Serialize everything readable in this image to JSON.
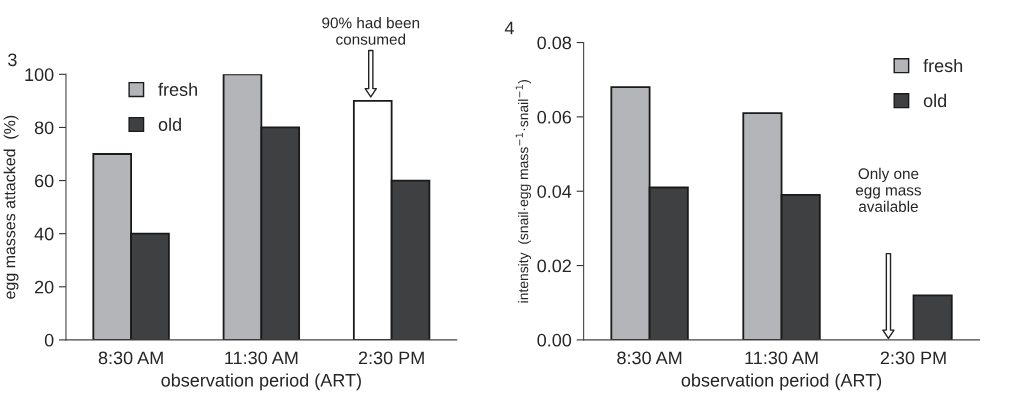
{
  "chart_data": [
    {
      "type": "bar",
      "title": "3",
      "categories": [
        "8:30 AM",
        "11:30 AM",
        "2:30 PM"
      ],
      "xlabel": "observation period (ART)",
      "ylabel": "egg masses attacked  (%)",
      "ylim": [
        0,
        100
      ],
      "yticks": [
        0,
        20,
        40,
        60,
        80,
        100
      ],
      "legend": "top left",
      "grid": false,
      "series": [
        {
          "name": "fresh",
          "color": "#b4b5b8",
          "colors": [
            "#b4b5b8",
            "#b4b5b8",
            "#ffffff"
          ],
          "values": [
            70,
            100,
            90
          ]
        },
        {
          "name": "old",
          "color": "#3f4042",
          "values": [
            40,
            80,
            60
          ]
        }
      ],
      "annotations": [
        "90% had been\nconsumed"
      ]
    },
    {
      "type": "bar",
      "title": "4",
      "categories": [
        "8:30 AM",
        "11:30 AM",
        "2:30 PM"
      ],
      "xlabel": "observation period (ART)",
      "ylabel": "intensity  (snail·egg mass$^{−1}$·snail$^{−1}$)",
      "ylim": [
        0,
        0.08
      ],
      "yticks": [
        {
          "value": 0,
          "label": "0.00"
        },
        {
          "value": 0.02,
          "label": "0.02"
        },
        {
          "value": 0.04,
          "label": "0.04"
        },
        {
          "value": 0.06,
          "label": "0.06"
        },
        {
          "value": 0.08,
          "label": "0.08"
        }
      ],
      "legend": "top right",
      "grid": false,
      "series": [
        {
          "name": "fresh",
          "color": "#b4b5b8",
          "values": [
            0.068,
            0.061,
            null
          ]
        },
        {
          "name": "old",
          "color": "#3f4042",
          "values": [
            0.041,
            0.039,
            0.012
          ]
        }
      ],
      "annotations": [
        "Only one\negg mass\navailable"
      ]
    }
  ]
}
